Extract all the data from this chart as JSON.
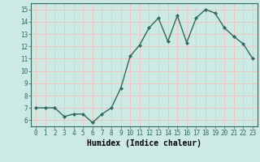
{
  "x": [
    0,
    1,
    2,
    3,
    4,
    5,
    6,
    7,
    8,
    9,
    10,
    11,
    12,
    13,
    14,
    15,
    16,
    17,
    18,
    19,
    20,
    21,
    22,
    23
  ],
  "y": [
    7.0,
    7.0,
    7.0,
    6.3,
    6.5,
    6.5,
    5.8,
    6.5,
    7.0,
    8.6,
    11.2,
    12.1,
    13.5,
    14.3,
    12.4,
    14.5,
    12.3,
    14.3,
    15.0,
    14.7,
    13.5,
    12.8,
    12.2,
    11.0
  ],
  "line_color": "#2e6b5e",
  "marker": "D",
  "marker_size": 2.0,
  "line_width": 1.0,
  "xlabel": "Humidex (Indice chaleur)",
  "ylim": [
    5.5,
    15.5
  ],
  "xlim": [
    -0.5,
    23.5
  ],
  "yticks": [
    6,
    7,
    8,
    9,
    10,
    11,
    12,
    13,
    14,
    15
  ],
  "xticks": [
    0,
    1,
    2,
    3,
    4,
    5,
    6,
    7,
    8,
    9,
    10,
    11,
    12,
    13,
    14,
    15,
    16,
    17,
    18,
    19,
    20,
    21,
    22,
    23
  ],
  "bg_color": "#cce9e3",
  "grid_color": "#f5c0c0",
  "xlabel_fontsize": 7,
  "tick_fontsize": 5.5,
  "title": ""
}
